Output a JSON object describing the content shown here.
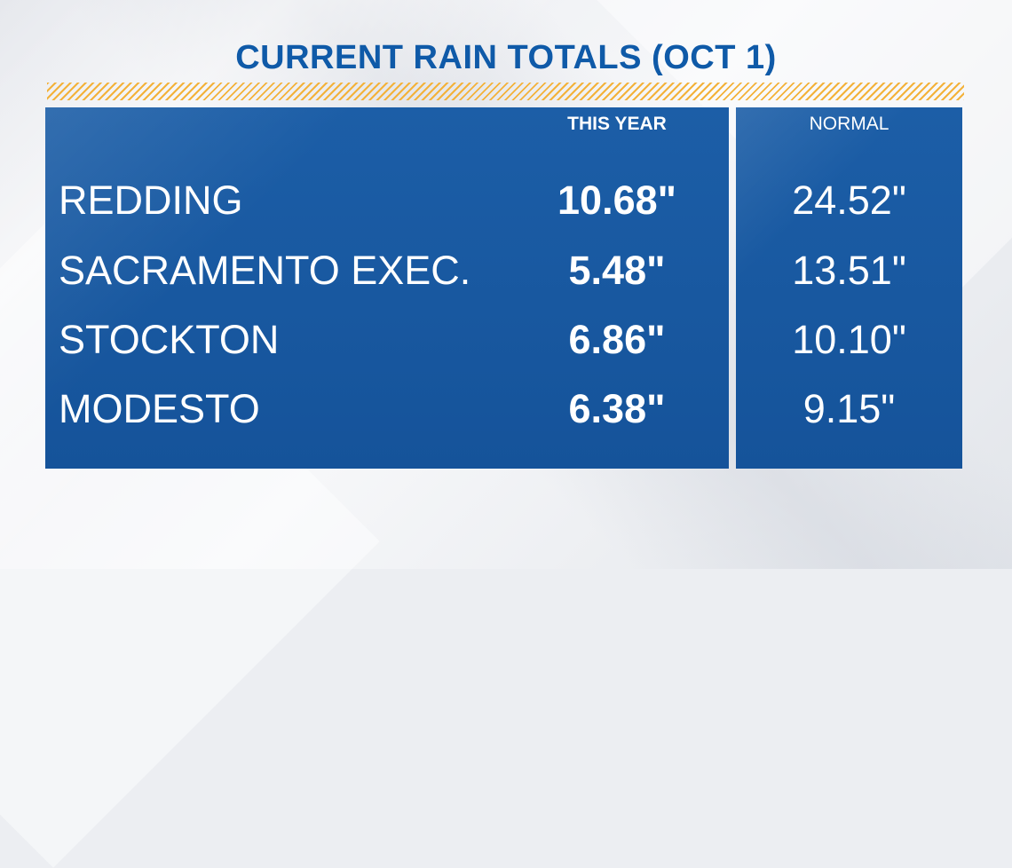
{
  "title": "CURRENT RAIN TOTALS (OCT 1)",
  "columns": {
    "this_year": "THIS YEAR",
    "normal": "NORMAL"
  },
  "rows": [
    {
      "city": "REDDING",
      "this_year": "10.68\"",
      "normal": "24.52\""
    },
    {
      "city": "SACRAMENTO EXEC.",
      "this_year": "5.48\"",
      "normal": "13.51\""
    },
    {
      "city": "STOCKTON",
      "this_year": "6.86\"",
      "normal": "10.10\""
    },
    {
      "city": "MODESTO",
      "this_year": "6.38\"",
      "normal": "9.15\""
    }
  ],
  "colors": {
    "title": "#0f5aa8",
    "panel": "#15539a",
    "stripe": "#f3b23a",
    "text": "#ffffff"
  }
}
